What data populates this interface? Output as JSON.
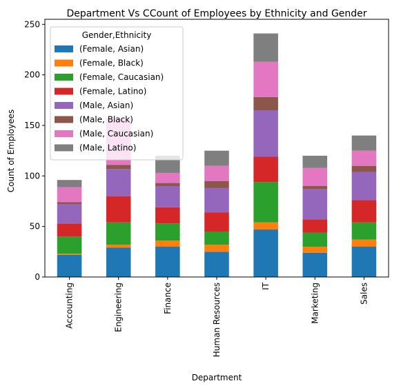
{
  "chart_data": {
    "type": "bar",
    "stacked": true,
    "title": "Department Vs CCount of Employees by Ethnicity and Gender",
    "xlabel": "Department",
    "ylabel": "Count of Employees",
    "ylim": [
      0,
      255
    ],
    "yticks": [
      0,
      50,
      100,
      150,
      200,
      250
    ],
    "grid": false,
    "legend_title": "Gender,Ethnicity",
    "legend_position": "top-left",
    "categories": [
      "Accounting",
      "Engineering",
      "Finance",
      "Human Resources",
      "IT",
      "Marketing",
      "Sales"
    ],
    "series": [
      {
        "name": "(Female, Asian)",
        "color": "#1f77b4",
        "values": [
          22,
          29,
          30,
          25,
          47,
          24,
          30
        ]
      },
      {
        "name": "(Female, Black)",
        "color": "#ff7f0e",
        "values": [
          1,
          3,
          6,
          7,
          7,
          6,
          7
        ]
      },
      {
        "name": "(Female, Caucasian)",
        "color": "#2ca02c",
        "values": [
          17,
          22,
          17,
          13,
          40,
          14,
          17
        ]
      },
      {
        "name": "(Female, Latino)",
        "color": "#d62728",
        "values": [
          13,
          26,
          16,
          19,
          25,
          13,
          22
        ]
      },
      {
        "name": "(Male, Asian)",
        "color": "#9467bd",
        "values": [
          19,
          27,
          21,
          24,
          46,
          30,
          28
        ]
      },
      {
        "name": "(Male, Black)",
        "color": "#8c564b",
        "values": [
          2,
          4,
          3,
          7,
          13,
          3,
          6
        ]
      },
      {
        "name": "(Male, Caucasian)",
        "color": "#e377c2",
        "values": [
          15,
          46,
          10,
          15,
          35,
          18,
          15
        ]
      },
      {
        "name": "(Male, Latino)",
        "color": "#7f7f7f",
        "values": [
          7,
          0,
          17,
          15,
          28,
          12,
          15
        ]
      }
    ]
  }
}
